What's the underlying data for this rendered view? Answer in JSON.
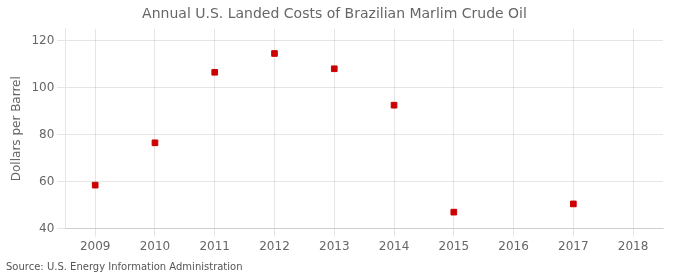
{
  "chart_data": {
    "type": "scatter",
    "title": "Annual U.S. Landed Costs of Brazilian Marlim Crude Oil",
    "ylabel": "Dollars per Barrel",
    "annotation": "Source: U.S. Energy Information Administration",
    "x": [
      2009,
      2010,
      2011,
      2012,
      2013,
      2014,
      2015,
      2017
    ],
    "values": [
      58.5,
      76.5,
      106.5,
      114.5,
      108.0,
      92.5,
      47.0,
      50.5
    ],
    "color": "#cc0000",
    "marker": "square",
    "xlim": [
      2008.5,
      2018.5
    ],
    "ylim": [
      40,
      125
    ],
    "xticks": [
      2009,
      2010,
      2011,
      2012,
      2013,
      2014,
      2015,
      2016,
      2017,
      2018
    ],
    "yticks": [
      40,
      60,
      80,
      100,
      120
    ],
    "grid": true
  }
}
